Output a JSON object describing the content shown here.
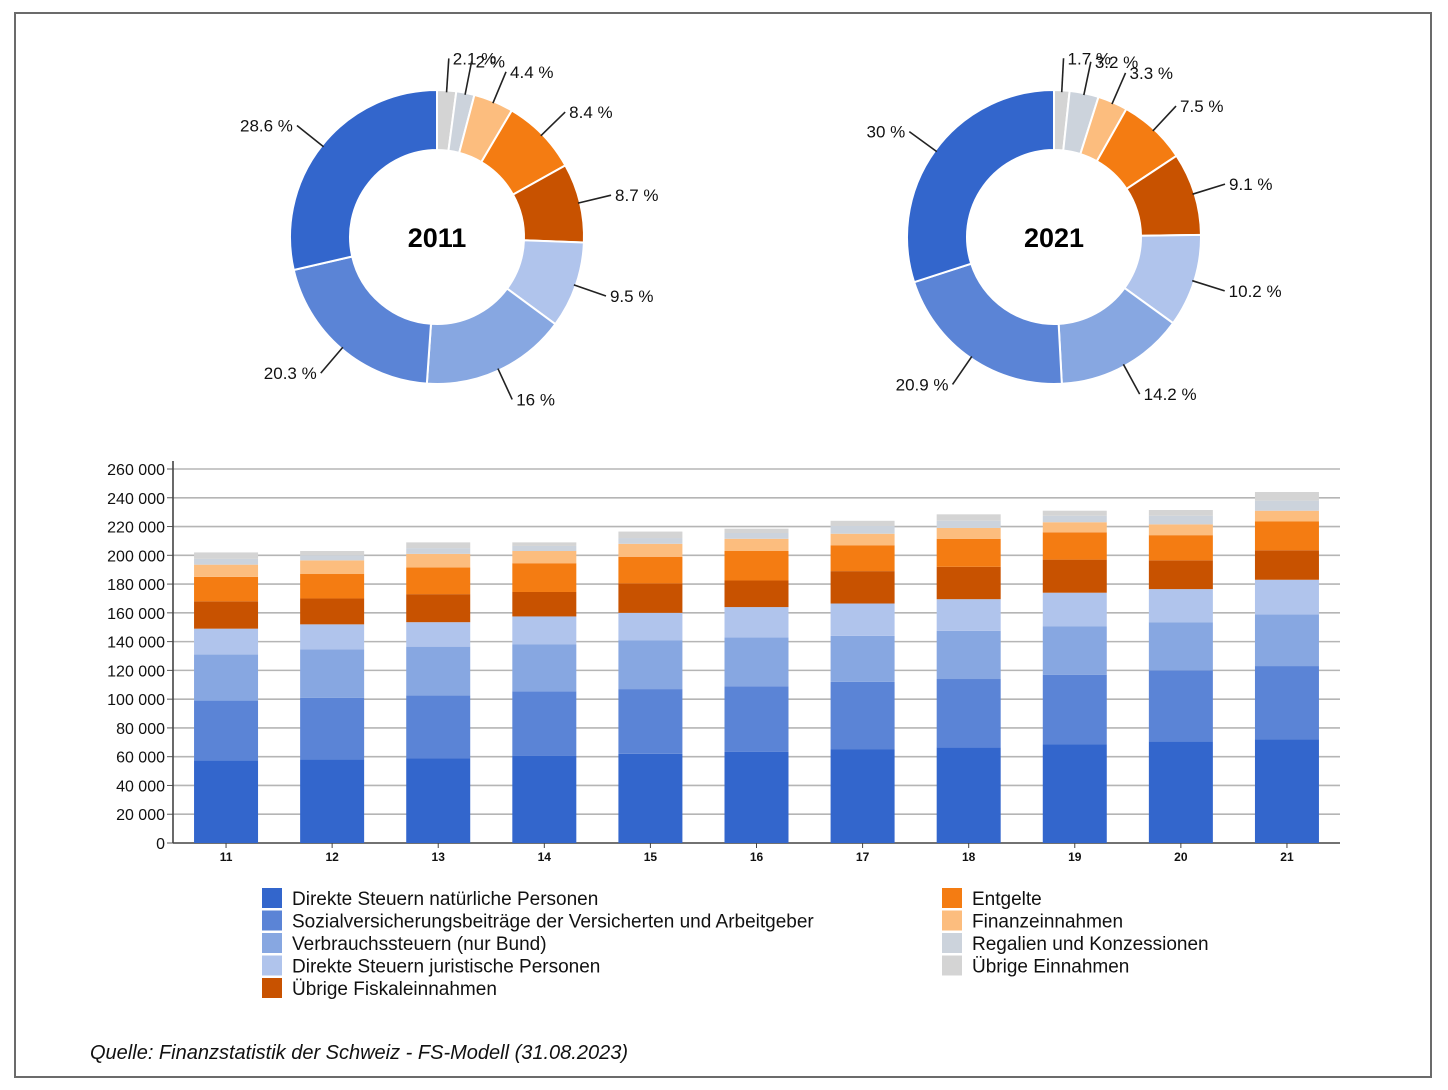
{
  "colors": {
    "Direkte Steuern natürliche Personen": "#3366cc",
    "Sozialversicherungsbeiträge der Versicherten und Arbeitgeber": "#5b84d6",
    "Verbrauchssteuern (nur Bund)": "#87a7e1",
    "Direkte Steuern juristische Personen": "#b0c4ec",
    "Übrige Fiskaleinnahmen": "#c85200",
    "Entgelte": "#f47c12",
    "Finanzeinnahmen": "#fcbd7e",
    "Regalien und Konzessionen": "#ccd3dc",
    "Übrige Einnahmen": "#d4d4d4"
  },
  "source": "Quelle: Finanzstatistik der Schweiz - FS-Modell (31.08.2023)",
  "chart_data": [
    {
      "type": "pie",
      "variant": "donut",
      "center_label": "2011",
      "slices": [
        {
          "name": "Direkte Steuern natürliche Personen",
          "value": 28.6,
          "label": "28.6 %"
        },
        {
          "name": "Sozialversicherungsbeiträge der Versicherten und Arbeitgeber",
          "value": 20.3,
          "label": "20.3 %"
        },
        {
          "name": "Verbrauchssteuern (nur Bund)",
          "value": 16,
          "label": "16 %"
        },
        {
          "name": "Direkte Steuern juristische Personen",
          "value": 9.5,
          "label": "9.5 %"
        },
        {
          "name": "Übrige Fiskaleinnahmen",
          "value": 8.7,
          "label": "8.7 %"
        },
        {
          "name": "Entgelte",
          "value": 8.4,
          "label": "8.4 %"
        },
        {
          "name": "Finanzeinnahmen",
          "value": 4.4,
          "label": "4.4 %"
        },
        {
          "name": "Regalien und Konzessionen",
          "value": 2,
          "label": "2 %"
        },
        {
          "name": "Übrige Einnahmen",
          "value": 2.1,
          "label": "2.1 %"
        }
      ]
    },
    {
      "type": "pie",
      "variant": "donut",
      "center_label": "2021",
      "slices": [
        {
          "name": "Direkte Steuern natürliche Personen",
          "value": 30,
          "label": "30 %"
        },
        {
          "name": "Sozialversicherungsbeiträge der Versicherten und Arbeitgeber",
          "value": 20.9,
          "label": "20.9 %"
        },
        {
          "name": "Verbrauchssteuern (nur Bund)",
          "value": 14.2,
          "label": "14.2 %"
        },
        {
          "name": "Direkte Steuern juristische Personen",
          "value": 10.2,
          "label": "10.2 %"
        },
        {
          "name": "Übrige Fiskaleinnahmen",
          "value": 9.1,
          "label": "9.1 %"
        },
        {
          "name": "Entgelte",
          "value": 7.5,
          "label": "7.5 %"
        },
        {
          "name": "Finanzeinnahmen",
          "value": 3.3,
          "label": "3.3 %"
        },
        {
          "name": "Regalien und Konzessionen",
          "value": 3.2,
          "label": "3.2 %"
        },
        {
          "name": "Übrige Einnahmen",
          "value": 1.7,
          "label": "1.7 %"
        }
      ]
    },
    {
      "type": "bar",
      "stacked": true,
      "categories": [
        "11",
        "12",
        "13",
        "14",
        "15",
        "16",
        "17",
        "18",
        "19",
        "20",
        "21"
      ],
      "ylim": [
        0,
        260000
      ],
      "yticks": [
        0,
        20000,
        40000,
        60000,
        80000,
        100000,
        120000,
        140000,
        160000,
        180000,
        200000,
        220000,
        240000,
        260000
      ],
      "ytick_labels": [
        "0",
        "20 000",
        "40 000",
        "60 000",
        "80 000",
        "100 000",
        "120 000",
        "140 000",
        "160 000",
        "180 000",
        "200 000",
        "220 000",
        "240 000",
        "260 000"
      ],
      "grid": true,
      "series": [
        {
          "name": "Direkte Steuern natürliche Personen",
          "values": [
            57500,
            58000,
            59000,
            60500,
            62000,
            63500,
            65000,
            66500,
            68500,
            70500,
            72000
          ]
        },
        {
          "name": "Sozialversicherungsbeiträge der Versicherten und Arbeitgeber",
          "values": [
            41500,
            43000,
            43500,
            45000,
            45000,
            45500,
            47000,
            47500,
            48500,
            49500,
            51000
          ]
        },
        {
          "name": "Verbrauchssteuern (nur Bund)",
          "values": [
            32000,
            33500,
            34000,
            32500,
            34000,
            34000,
            32000,
            33500,
            33500,
            33500,
            36000
          ]
        },
        {
          "name": "Direkte Steuern juristische Personen",
          "values": [
            18000,
            17500,
            17000,
            19500,
            19000,
            21000,
            22500,
            22000,
            23500,
            23000,
            24000
          ]
        },
        {
          "name": "Übrige Fiskaleinnahmen",
          "values": [
            19000,
            18000,
            19500,
            17000,
            20500,
            18500,
            22500,
            22500,
            23000,
            20000,
            20500
          ]
        },
        {
          "name": "Entgelte",
          "values": [
            17000,
            17000,
            18500,
            20000,
            18500,
            20500,
            18000,
            19500,
            19000,
            17500,
            20000
          ]
        },
        {
          "name": "Finanzeinnahmen",
          "values": [
            8500,
            9500,
            9500,
            8500,
            9000,
            8500,
            8000,
            7500,
            7000,
            7500,
            7500
          ]
        },
        {
          "name": "Regalien und Konzessionen",
          "values": [
            4000,
            3500,
            4000,
            3500,
            4000,
            4000,
            5500,
            5000,
            4500,
            6000,
            7000
          ]
        },
        {
          "name": "Übrige Einnahmen",
          "values": [
            4500,
            3000,
            4000,
            2500,
            4500,
            3000,
            3500,
            4500,
            3500,
            4000,
            6000
          ]
        }
      ],
      "legend": {
        "placement": "bottom",
        "left_column": [
          "Direkte Steuern natürliche Personen",
          "Sozialversicherungsbeiträge der Versicherten und Arbeitgeber",
          "Verbrauchssteuern (nur Bund)",
          "Direkte Steuern juristische Personen",
          "Übrige Fiskaleinnahmen"
        ],
        "right_column": [
          "Entgelte",
          "Finanzeinnahmen",
          "Regalien und Konzessionen",
          "Übrige Einnahmen"
        ]
      }
    }
  ]
}
